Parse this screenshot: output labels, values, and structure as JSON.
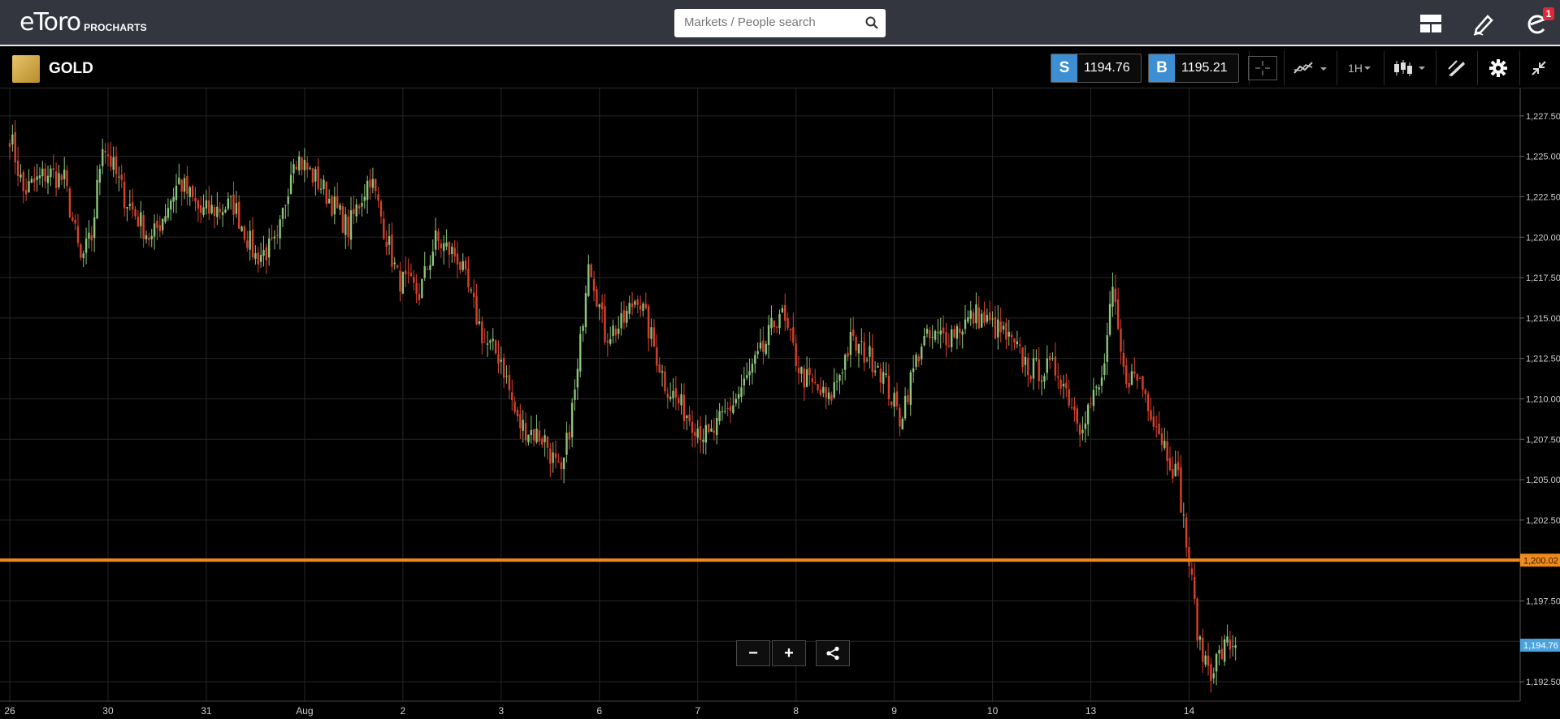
{
  "app": {
    "logo": "eToro",
    "sub": "PROCHARTS"
  },
  "search": {
    "placeholder": "Markets / People search"
  },
  "notifications": {
    "count": "1"
  },
  "instrument": {
    "name": "GOLD",
    "sell_tag": "S",
    "sell_price": "1194.76",
    "buy_tag": "B",
    "buy_price": "1195.21",
    "timeframe": "1H"
  },
  "icons": {
    "search": "search-icon",
    "layout": "layout-grid-icon",
    "draw": "pencil-icon",
    "user": "etoro-user-icon",
    "crosshair": "crosshair-icon",
    "indicators": "indicators-icon",
    "candles": "candlestick-icon",
    "annotate": "draw-tools-icon",
    "settings": "gear-icon",
    "collapse": "collapse-icon",
    "share": "share-icon"
  },
  "colors": {
    "up": "#8cc47c",
    "down": "#d8412b",
    "hline": "#f08a1c",
    "last": "#4aa3df",
    "sell": "#3e8ed3",
    "buy": "#3e8ed3"
  },
  "zoom": {
    "minus": "−",
    "plus": "+"
  },
  "chart_data": {
    "type": "candlestick",
    "ylim": [
      1191.3,
      1229.2
    ],
    "y_ticks": [
      "1,227.50",
      "1,225.00",
      "1,222.50",
      "1,220.00",
      "1,217.50",
      "1,215.00",
      "1,212.50",
      "1,210.00",
      "1,207.50",
      "1,205.00",
      "1,202.50",
      "1,200.00",
      "1,197.50",
      "1,195.00",
      "1,192.50"
    ],
    "y_tick_values": [
      1227.5,
      1225,
      1222.5,
      1220,
      1217.5,
      1215,
      1212.5,
      1210,
      1207.5,
      1205,
      1202.5,
      1200,
      1197.5,
      1195,
      1192.5
    ],
    "x_labels": [
      "26",
      "30",
      "31",
      "Aug",
      "2",
      "3",
      "6",
      "7",
      "8",
      "9",
      "10",
      "13",
      "14"
    ],
    "x_label_index": [
      0,
      36,
      72,
      108,
      144,
      180,
      216,
      252,
      288,
      324,
      360,
      396,
      432
    ],
    "horizontal_line": {
      "value": 1200.02,
      "label": "1,200.02"
    },
    "last_price": {
      "value": 1194.76,
      "label": "1,194.76"
    },
    "candle_count": 450,
    "anchors": [
      {
        "i": 0,
        "c": 1226.4
      },
      {
        "i": 5,
        "c": 1222.8
      },
      {
        "i": 14,
        "c": 1224.0
      },
      {
        "i": 20,
        "c": 1223.5
      },
      {
        "i": 26,
        "c": 1218.5
      },
      {
        "i": 30,
        "c": 1220.0
      },
      {
        "i": 34,
        "c": 1226.0
      },
      {
        "i": 42,
        "c": 1222.5
      },
      {
        "i": 52,
        "c": 1219.8
      },
      {
        "i": 62,
        "c": 1223.5
      },
      {
        "i": 70,
        "c": 1221.5
      },
      {
        "i": 82,
        "c": 1222.0
      },
      {
        "i": 90,
        "c": 1218.8
      },
      {
        "i": 98,
        "c": 1219.5
      },
      {
        "i": 104,
        "c": 1225.2
      },
      {
        "i": 114,
        "c": 1223.2
      },
      {
        "i": 124,
        "c": 1220.5
      },
      {
        "i": 132,
        "c": 1223.8
      },
      {
        "i": 142,
        "c": 1217.5
      },
      {
        "i": 150,
        "c": 1216.5
      },
      {
        "i": 156,
        "c": 1219.8
      },
      {
        "i": 164,
        "c": 1218.8
      },
      {
        "i": 174,
        "c": 1213.5
      },
      {
        "i": 180,
        "c": 1212.5
      },
      {
        "i": 186,
        "c": 1208.5
      },
      {
        "i": 196,
        "c": 1207.5
      },
      {
        "i": 202,
        "c": 1205.0
      },
      {
        "i": 208,
        "c": 1211.5
      },
      {
        "i": 212,
        "c": 1219.0
      },
      {
        "i": 218,
        "c": 1214.0
      },
      {
        "i": 224,
        "c": 1214.5
      },
      {
        "i": 230,
        "c": 1216.5
      },
      {
        "i": 240,
        "c": 1211.0
      },
      {
        "i": 246,
        "c": 1209.5
      },
      {
        "i": 256,
        "c": 1207.5
      },
      {
        "i": 266,
        "c": 1210.0
      },
      {
        "i": 276,
        "c": 1213.0
      },
      {
        "i": 282,
        "c": 1215.5
      },
      {
        "i": 290,
        "c": 1211.5
      },
      {
        "i": 300,
        "c": 1209.8
      },
      {
        "i": 308,
        "c": 1213.5
      },
      {
        "i": 318,
        "c": 1212.2
      },
      {
        "i": 326,
        "c": 1208.8
      },
      {
        "i": 334,
        "c": 1213.5
      },
      {
        "i": 344,
        "c": 1214.0
      },
      {
        "i": 354,
        "c": 1215.2
      },
      {
        "i": 364,
        "c": 1214.0
      },
      {
        "i": 374,
        "c": 1211.8
      },
      {
        "i": 384,
        "c": 1211.8
      },
      {
        "i": 392,
        "c": 1208.5
      },
      {
        "i": 400,
        "c": 1211.0
      },
      {
        "i": 404,
        "c": 1216.5
      },
      {
        "i": 408,
        "c": 1211.5
      },
      {
        "i": 414,
        "c": 1211.2
      },
      {
        "i": 420,
        "c": 1208.5
      },
      {
        "i": 428,
        "c": 1205.0
      },
      {
        "i": 432,
        "c": 1199.8
      },
      {
        "i": 436,
        "c": 1194.5
      },
      {
        "i": 440,
        "c": 1193.3
      },
      {
        "i": 446,
        "c": 1194.8
      },
      {
        "i": 449,
        "c": 1194.76
      }
    ]
  }
}
